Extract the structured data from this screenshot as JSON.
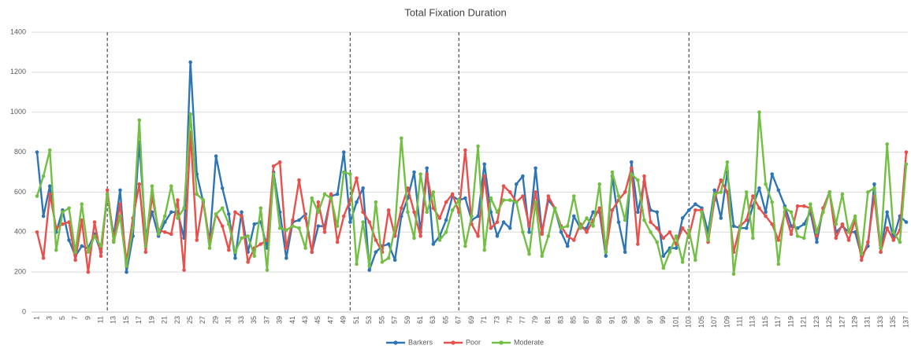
{
  "chart_data": {
    "type": "line",
    "title": "Total Fixation Duration",
    "categories": [
      1,
      null,
      3,
      null,
      5,
      null,
      7,
      null,
      9,
      null,
      11,
      null,
      13,
      null,
      15,
      null,
      17,
      null,
      19,
      null,
      21,
      null,
      23,
      null,
      25,
      null,
      27,
      null,
      29,
      null,
      31,
      null,
      33,
      null,
      35,
      null,
      37,
      null,
      39,
      null,
      41,
      null,
      43,
      null,
      45,
      null,
      47,
      null,
      49,
      null,
      51,
      null,
      53,
      null,
      55,
      null,
      57,
      null,
      59,
      null,
      61,
      null,
      63,
      null,
      65,
      null,
      67,
      null,
      69,
      null,
      71,
      null,
      73,
      null,
      75,
      null,
      77,
      null,
      79,
      null,
      81,
      null,
      83,
      null,
      85,
      null,
      87,
      null,
      89,
      null,
      91,
      null,
      93,
      null,
      95,
      null,
      97,
      null,
      99,
      null,
      101,
      null,
      103,
      null,
      105,
      null,
      107,
      null,
      109,
      null,
      111,
      null,
      113,
      null,
      115,
      null,
      117,
      null,
      119,
      null,
      121,
      null,
      123,
      null,
      125,
      null,
      127,
      null,
      129,
      null,
      131,
      null,
      133,
      null,
      135,
      null,
      137
    ],
    "series": [
      {
        "name": "Barkers",
        "color": "#2e75b6",
        "values": [
          800,
          480,
          630,
          400,
          510,
          360,
          280,
          330,
          320,
          390,
          300,
          590,
          380,
          610,
          200,
          380,
          850,
          380,
          500,
          380,
          450,
          500,
          500,
          370,
          1250,
          690,
          550,
          350,
          780,
          620,
          490,
          270,
          500,
          300,
          440,
          450,
          320,
          700,
          500,
          270,
          450,
          460,
          490,
          300,
          430,
          430,
          580,
          590,
          800,
          450,
          550,
          620,
          210,
          300,
          330,
          340,
          260,
          480,
          570,
          700,
          400,
          720,
          340,
          380,
          460,
          580,
          560,
          570,
          460,
          480,
          740,
          500,
          380,
          450,
          420,
          640,
          680,
          400,
          720,
          400,
          560,
          520,
          400,
          330,
          480,
          420,
          420,
          500,
          500,
          280,
          680,
          450,
          300,
          750,
          500,
          650,
          510,
          500,
          280,
          320,
          320,
          470,
          510,
          540,
          520,
          400,
          610,
          470,
          700,
          430,
          420,
          420,
          530,
          620,
          500,
          690,
          610,
          530,
          430,
          420,
          440,
          500,
          350,
          520,
          600,
          400,
          430,
          400,
          400,
          280,
          330,
          640,
          300,
          500,
          370,
          480,
          450
        ]
      },
      {
        "name": "Poor",
        "color": "#e8504c",
        "values": [
          400,
          270,
          590,
          420,
          440,
          450,
          260,
          460,
          200,
          450,
          280,
          610,
          360,
          540,
          250,
          470,
          640,
          300,
          580,
          410,
          400,
          390,
          560,
          210,
          900,
          360,
          560,
          350,
          490,
          430,
          310,
          500,
          480,
          250,
          320,
          340,
          360,
          730,
          750,
          320,
          460,
          660,
          470,
          300,
          550,
          400,
          590,
          350,
          480,
          560,
          670,
          500,
          450,
          360,
          300,
          510,
          380,
          520,
          620,
          500,
          380,
          690,
          520,
          470,
          550,
          590,
          500,
          810,
          440,
          380,
          680,
          420,
          450,
          630,
          600,
          550,
          580,
          430,
          600,
          390,
          580,
          520,
          430,
          380,
          360,
          440,
          400,
          460,
          520,
          300,
          510,
          560,
          600,
          720,
          340,
          680,
          450,
          420,
          370,
          400,
          340,
          420,
          380,
          510,
          510,
          350,
          560,
          660,
          600,
          300,
          430,
          460,
          580,
          520,
          480,
          440,
          360,
          500,
          390,
          530,
          530,
          520,
          380,
          520,
          600,
          370,
          440,
          360,
          460,
          260,
          350,
          580,
          300,
          420,
          360,
          410,
          800
        ]
      },
      {
        "name": "Moderate",
        "color": "#72bf44",
        "values": [
          580,
          680,
          810,
          310,
          500,
          520,
          300,
          540,
          300,
          380,
          330,
          590,
          350,
          480,
          230,
          420,
          960,
          330,
          630,
          390,
          480,
          630,
          470,
          520,
          990,
          590,
          560,
          320,
          490,
          520,
          440,
          300,
          370,
          380,
          280,
          520,
          210,
          690,
          420,
          410,
          430,
          420,
          320,
          570,
          500,
          590,
          570,
          430,
          700,
          690,
          240,
          450,
          230,
          550,
          250,
          270,
          420,
          870,
          500,
          370,
          690,
          500,
          600,
          360,
          400,
          510,
          560,
          330,
          480,
          830,
          310,
          570,
          500,
          560,
          560,
          550,
          400,
          290,
          550,
          280,
          380,
          520,
          420,
          430,
          580,
          420,
          470,
          430,
          640,
          300,
          700,
          580,
          460,
          690,
          660,
          460,
          400,
          350,
          220,
          300,
          380,
          250,
          410,
          260,
          500,
          360,
          590,
          600,
          750,
          190,
          420,
          600,
          370,
          1000,
          640,
          550,
          240,
          520,
          500,
          380,
          370,
          540,
          400,
          500,
          600,
          440,
          590,
          400,
          480,
          290,
          600,
          620,
          320,
          840,
          400,
          350,
          740
        ]
      }
    ],
    "dividers": [
      12,
      50,
      67,
      103
    ],
    "ylim": [
      0,
      1400
    ],
    "yticks": [
      0,
      200,
      400,
      600,
      800,
      1000,
      1200,
      1400
    ],
    "grid": true,
    "legend": "bottom"
  }
}
